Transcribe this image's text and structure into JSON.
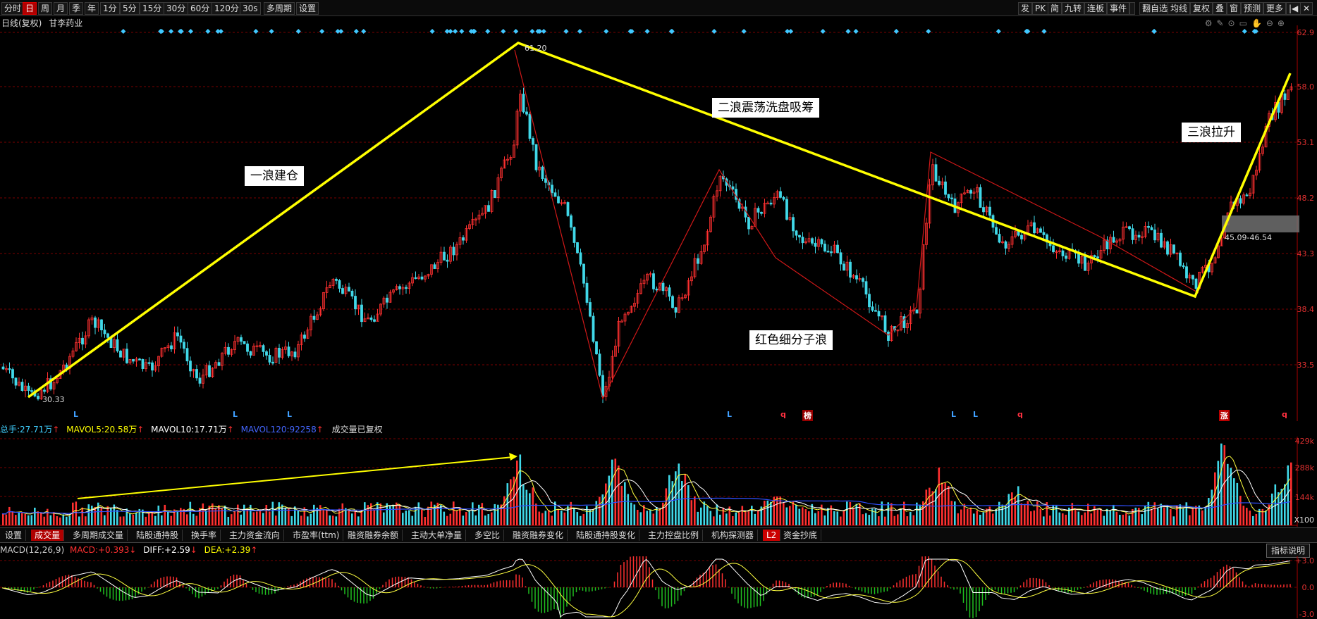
{
  "toolbar": {
    "left_items": [
      "分时",
      "日",
      "周",
      "月",
      "季",
      "年",
      "1分",
      "5分",
      "15分",
      "30分",
      "60分",
      "120分",
      "30s",
      "多周期",
      "设置"
    ],
    "active": "日",
    "right_items": [
      "发",
      "PK",
      "简",
      "九转",
      "连板",
      "事件",
      "",
      "翻自选",
      "均线",
      "复权",
      "叠",
      "窗",
      "预测",
      "更多",
      "|◀",
      "✕"
    ]
  },
  "stock": {
    "title": "日线(复权)",
    "name": "甘李药业"
  },
  "price_axis": {
    "ticks": [
      "62.9",
      "58.0",
      "53.1",
      "48.2",
      "43.3",
      "38.4",
      "33.5"
    ]
  },
  "annotations": {
    "high_label": "61.20",
    "low_label": "30.33",
    "box_range": "45.09-46.54",
    "wave1": "一浪建仓",
    "wave2": "二浪震荡洗盘吸筹",
    "wave3": "三浪拉升",
    "sub_wave": "红色细分子浪"
  },
  "event_marks": {
    "L_marks": [
      "L",
      "L",
      "L",
      "L",
      "L",
      "L"
    ],
    "q_marks": [
      "q",
      "q",
      "q"
    ],
    "bang": "榜",
    "zhang": "涨"
  },
  "volume": {
    "total_label": "总手:",
    "total": "27.71万",
    "mavol5_label": "MAVOL5:",
    "mavol5": "20.58万",
    "mavol10_label": "MAVOL10:",
    "mavol10": "17.71万",
    "mavol120_label": "MAVOL120:",
    "mavol120": "92258",
    "note": "成交量已复权",
    "ticks": [
      "429k",
      "288k",
      "144k",
      "X100"
    ]
  },
  "tabs": [
    "设置",
    "成交量",
    "多周期成交量",
    "陆股通持股",
    "换手率",
    "主力资金流向",
    "市盈率(ttm)",
    "融资融券余额",
    "主动大单净量",
    "多空比",
    "融资融券变化",
    "陆股通持股变化",
    "主力控盘比例",
    "机构探测器",
    "L2",
    "资金抄底"
  ],
  "active_tab": "成交量",
  "macd": {
    "title": "MACD(12,26,9)",
    "macd_label": "MACD:",
    "macd": "+0.393",
    "diff_label": "DIFF:",
    "diff": "+2.59",
    "dea_label": "DEA:",
    "dea": "+2.39",
    "ticks": [
      "+3.0",
      "0.0",
      "-3.0"
    ],
    "index_button": "指标说明"
  },
  "colors": {
    "up": "#ff3030",
    "down": "#40d8e8",
    "wave": "#ffff00",
    "grid": "#7a0000",
    "bg": "#000000"
  }
}
